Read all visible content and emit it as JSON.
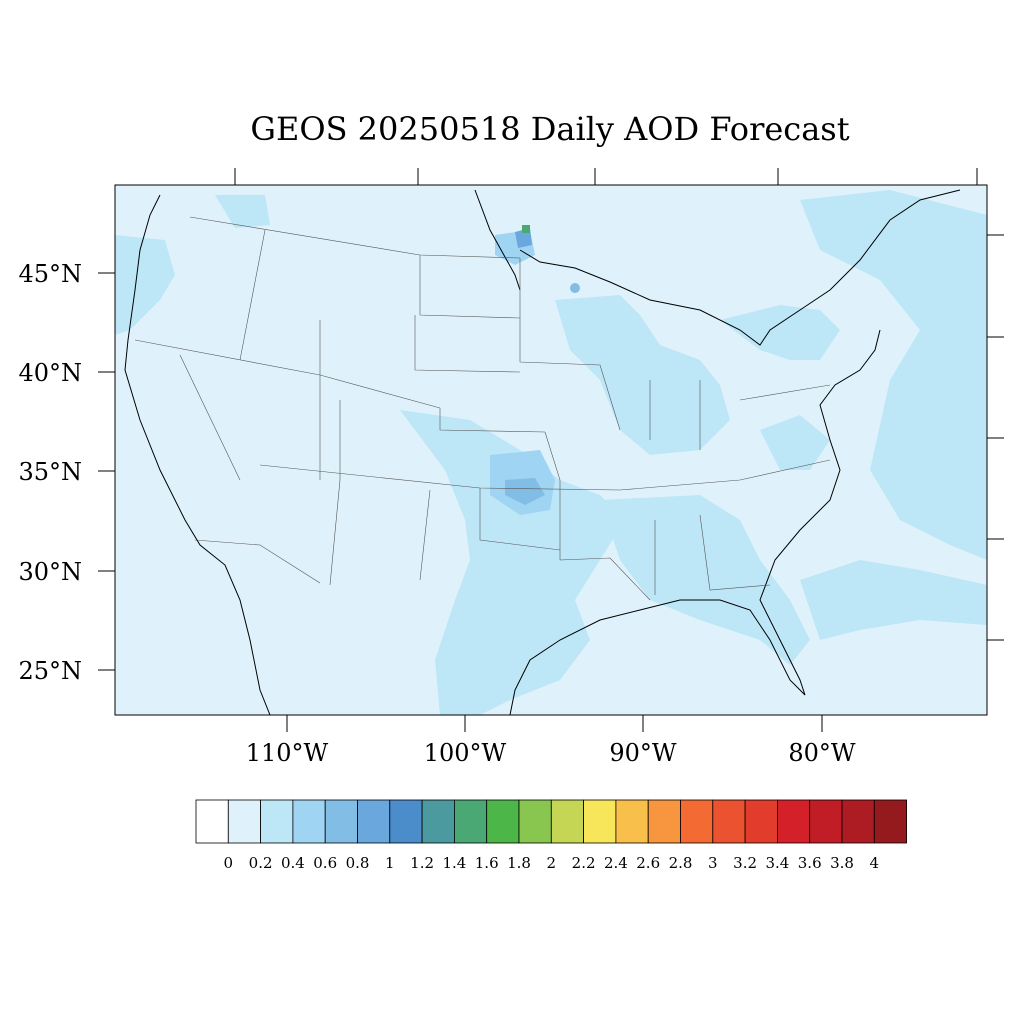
{
  "title": "GEOS 20250518 Daily AOD Forecast",
  "map": {
    "region": "Contiguous United States",
    "lat_range": [
      22.5,
      49.5
    ],
    "lon_range": [
      -119,
      -70
    ],
    "lat_labels": [
      "45°N",
      "40°N",
      "35°N",
      "30°N",
      "25°N"
    ],
    "lon_labels": [
      "110°W",
      "100°W",
      "90°W",
      "80°W"
    ],
    "background_aod_color": "#dff2fb",
    "elevated_aod_color": "#bde6f7"
  },
  "colorbar": {
    "levels": [
      "0",
      "0.2",
      "0.4",
      "0.6",
      "0.8",
      "1",
      "1.2",
      "1.4",
      "1.6",
      "1.8",
      "2",
      "2.2",
      "2.4",
      "2.6",
      "2.8",
      "3",
      "3.2",
      "3.4",
      "3.6",
      "3.8",
      "4"
    ],
    "colors": [
      "#ffffff",
      "#dff2fb",
      "#bde6f7",
      "#9fd5f2",
      "#82bde6",
      "#69a7dc",
      "#4a8dca",
      "#4a9aa0",
      "#4aa874",
      "#4cb648",
      "#88c64f",
      "#c5d654",
      "#f8e65a",
      "#f9bf4b",
      "#f7963e",
      "#f46a33",
      "#ea5230",
      "#e13c2c",
      "#d42129",
      "#c01d26",
      "#ad1b23",
      "#941a1e"
    ]
  }
}
